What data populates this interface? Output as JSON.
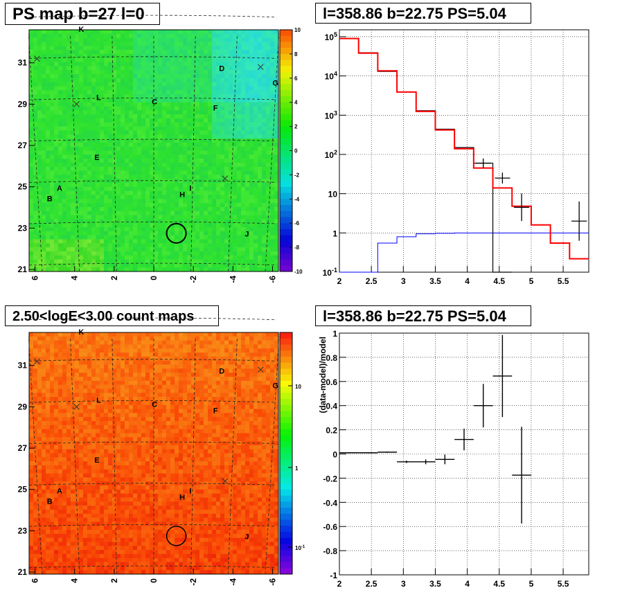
{
  "titles": {
    "ps_map": "PS map b=27 l=0",
    "spectrum": "l=358.86 b=22.75 PS=5.04",
    "count_map": "2.50<logE<3.00 count maps",
    "residual": "l=358.86 b=22.75 PS=5.04"
  },
  "chart_data": [
    {
      "type": "heatmap",
      "title": "PS map b=27 l=0",
      "x_ticks": [
        "6",
        "4",
        "2",
        "0",
        "-2",
        "-4",
        "-6"
      ],
      "y_ticks": [
        "21",
        "23",
        "25",
        "27",
        "29",
        "31"
      ],
      "xlim": [
        6.3,
        -6.3
      ],
      "ylim": [
        20.9,
        32.6
      ],
      "colorbar": {
        "min": -10,
        "max": 10,
        "ticks": [
          "10",
          "8",
          "6",
          "4",
          "2",
          "0",
          "-2",
          "-4",
          "-6",
          "-8",
          "-10"
        ]
      },
      "labels": [
        "K",
        "D",
        "G",
        "L",
        "C",
        "F",
        "E",
        "A",
        "B",
        "I",
        "H",
        "J"
      ],
      "markers": [
        {
          "l": 5.9,
          "b": 31.2
        },
        {
          "l": 3.9,
          "b": 29.0
        },
        {
          "l": -5.4,
          "b": 30.8
        },
        {
          "l": -3.6,
          "b": 25.4
        }
      ],
      "circle": {
        "l": -1.14,
        "b": 22.75
      }
    },
    {
      "type": "line",
      "title": "l=358.86 b=22.75 PS=5.04",
      "x_ticks": [
        "2",
        "2.5",
        "3",
        "3.5",
        "4",
        "4.5",
        "5",
        "5.5"
      ],
      "y_ticks": [
        "10^-1",
        "1",
        "10",
        "10^2",
        "10^3",
        "10^4",
        "10^5"
      ],
      "xlim": [
        2,
        5.9
      ],
      "ylim": [
        0.1,
        150000
      ],
      "yscale": "log",
      "grid": true,
      "bin_edges": [
        2.0,
        2.3,
        2.6,
        2.9,
        3.2,
        3.5,
        3.8,
        4.1,
        4.4,
        4.7,
        5.0,
        5.3,
        5.6,
        5.9
      ],
      "series": [
        {
          "color": "#ff0000",
          "values": [
            90000,
            38000,
            13500,
            3900,
            1250,
            420,
            140,
            45,
            14,
            4.8,
            1.6,
            0.55,
            0.22
          ]
        },
        {
          "color": "#0000ff",
          "values": [
            0.08,
            0.1,
            0.55,
            0.8,
            0.95,
            0.98,
            1.0,
            1.0,
            1.0,
            1.0,
            1.0,
            1.0,
            1.0
          ]
        },
        {
          "color": "#000000",
          "points": [
            {
              "x": 2.15,
              "y": 90000
            },
            {
              "x": 2.45,
              "y": 39000
            },
            {
              "x": 2.75,
              "y": 13000
            },
            {
              "x": 3.05,
              "y": 3900
            },
            {
              "x": 3.35,
              "y": 1300
            },
            {
              "x": 3.65,
              "y": 440
            },
            {
              "x": 3.95,
              "y": 150
            },
            {
              "x": 4.25,
              "y": 60
            },
            {
              "x": 4.55,
              "y": 25
            },
            {
              "x": 4.85,
              "y": 4.5
            },
            {
              "x": 5.75,
              "y": 2.0
            }
          ]
        }
      ]
    },
    {
      "type": "heatmap",
      "title": "2.50<logE<3.00 count maps",
      "x_ticks": [
        "6",
        "4",
        "2",
        "0",
        "-2",
        "-4",
        "-6"
      ],
      "y_ticks": [
        "21",
        "23",
        "25",
        "27",
        "29",
        "31"
      ],
      "xlim": [
        6.3,
        -6.3
      ],
      "ylim": [
        20.9,
        32.6
      ],
      "colorbar": {
        "scale": "log",
        "ticks": [
          "10",
          "1",
          "10^-1"
        ]
      },
      "labels": [
        "K",
        "D",
        "G",
        "L",
        "C",
        "F",
        "E",
        "A",
        "B",
        "I",
        "H",
        "J"
      ]
    },
    {
      "type": "scatter",
      "title": "l=358.86 b=22.75 PS=5.04",
      "ylabel": "(data-model)/model",
      "x_ticks": [
        "2",
        "2.5",
        "3",
        "3.5",
        "4",
        "4.5",
        "5",
        "5.5"
      ],
      "y_ticks": [
        "1",
        "0.8",
        "0.6",
        "0.4",
        "0.2",
        "0",
        "-0.2",
        "-0.4",
        "-0.6",
        "-0.8",
        "-1"
      ],
      "xlim": [
        2,
        5.9
      ],
      "ylim": [
        -1,
        1
      ],
      "grid": true,
      "points": [
        {
          "x": 2.15,
          "y": 0.01,
          "xerr": 0.15,
          "yerr": 0.005
        },
        {
          "x": 2.45,
          "y": 0.01,
          "xerr": 0.15,
          "yerr": 0.005
        },
        {
          "x": 2.75,
          "y": 0.015,
          "xerr": 0.15,
          "yerr": 0.005
        },
        {
          "x": 3.05,
          "y": -0.065,
          "xerr": 0.15,
          "yerr": 0.01
        },
        {
          "x": 3.35,
          "y": -0.065,
          "xerr": 0.15,
          "yerr": 0.02
        },
        {
          "x": 3.65,
          "y": -0.045,
          "xerr": 0.15,
          "yerr": 0.04
        },
        {
          "x": 3.95,
          "y": 0.12,
          "xerr": 0.15,
          "yerr": 0.09
        },
        {
          "x": 4.25,
          "y": 0.4,
          "xerr": 0.15,
          "yerr": 0.18
        },
        {
          "x": 4.55,
          "y": 0.645,
          "xerr": 0.15,
          "yerr": 0.34
        },
        {
          "x": 4.85,
          "y": -0.175,
          "xerr": 0.15,
          "yerr": 0.4
        }
      ]
    }
  ]
}
